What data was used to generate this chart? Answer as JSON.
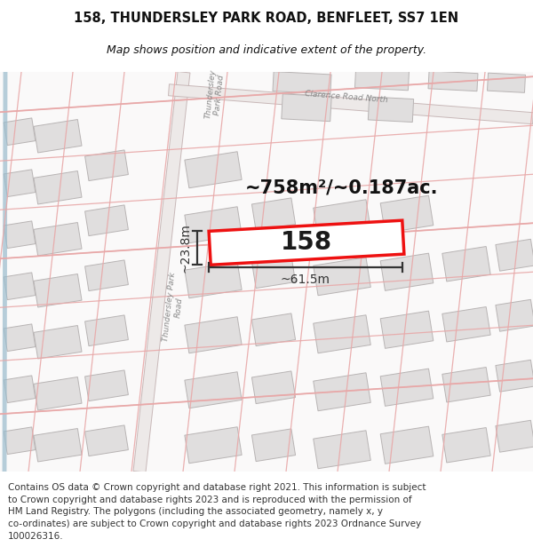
{
  "title": "158, THUNDERSLEY PARK ROAD, BENFLEET, SS7 1EN",
  "subtitle": "Map shows position and indicative extent of the property.",
  "area_text": "~758m²/~0.187ac.",
  "property_number": "158",
  "width_label": "~61.5m",
  "height_label": "~23.8m",
  "footer_text": "Contains OS data © Crown copyright and database right 2021. This information is subject\nto Crown copyright and database rights 2023 and is reproduced with the permission of\nHM Land Registry. The polygons (including the associated geometry, namely x, y\nco-ordinates) are subject to Crown copyright and database rights 2023 Ordnance Survey\n100026316.",
  "map_bg": "#f7f5f5",
  "building_fill": "#e0dede",
  "building_edge": "#b8b4b4",
  "plot_line_color": "#e8a8a8",
  "road_fill": "#ede8e8",
  "road_edge": "#c8b8b8",
  "property_fill": "#ffffff",
  "property_edge": "#ee1111",
  "dim_color": "#333333",
  "text_dark": "#111111",
  "road_text_color": "#888888",
  "blue_strip": "#99bbcc",
  "title_fontsize": 10.5,
  "subtitle_fontsize": 9.0,
  "footer_fontsize": 7.5,
  "area_fontsize": 15,
  "number_fontsize": 20,
  "dim_fontsize": 10,
  "road_label_fontsize": 6.5
}
